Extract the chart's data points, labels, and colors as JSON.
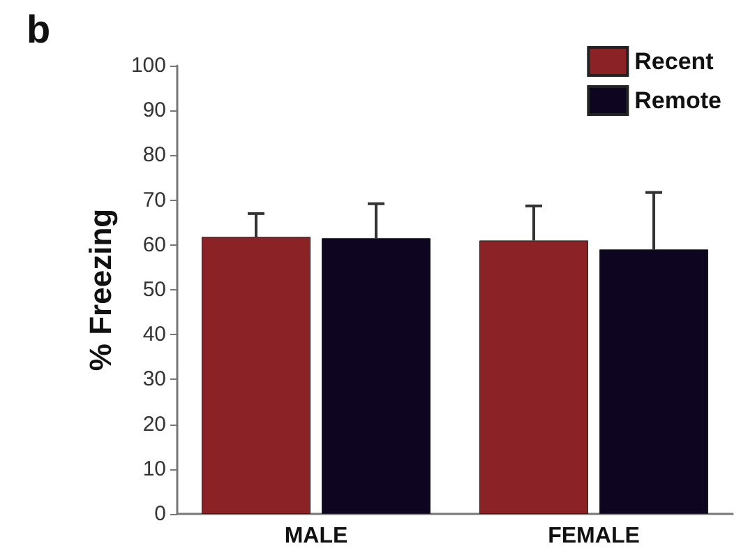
{
  "chart_data": {
    "type": "bar",
    "title": "b",
    "ylabel": "% Freezing",
    "categories": [
      "MALE",
      "FEMALE"
    ],
    "series": [
      {
        "name": "Recent",
        "color": "#8b2226",
        "values": [
          61.8,
          61
        ],
        "errors": [
          [
            61.8,
            67
          ],
          [
            61,
            68.7
          ]
        ]
      },
      {
        "name": "Remote",
        "color": "#0e0620",
        "values": [
          61.5,
          59
        ],
        "errors": [
          [
            61.5,
            69.2
          ],
          [
            59,
            71.7
          ]
        ]
      }
    ],
    "ylim": [
      0,
      100
    ],
    "yticks": [
      0,
      10,
      20,
      30,
      40,
      50,
      60,
      70,
      80,
      90,
      100
    ],
    "grid": false,
    "legend": "top right"
  }
}
